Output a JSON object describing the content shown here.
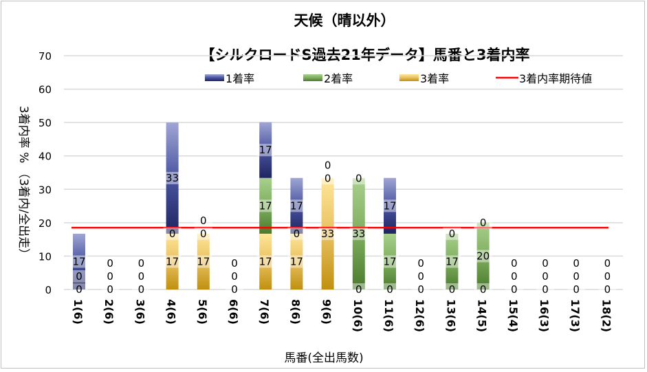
{
  "chart_data": {
    "type": "bar",
    "stacked": true,
    "title": "天候（晴以外）",
    "subtitle": "【シルクロードS過去21年データ】馬番と3着内率",
    "xlabel": "馬番(全出馬数)",
    "ylabel": "3着内率 %  （3着内/全出走）",
    "ylim": [
      0,
      70
    ],
    "yticks": [
      0,
      10,
      20,
      30,
      40,
      50,
      60,
      70
    ],
    "grid": true,
    "legend_position": "top",
    "categories": [
      "1(6)",
      "2(6)",
      "3(6)",
      "4(6)",
      "5(6)",
      "6(6)",
      "7(6)",
      "8(6)",
      "9(6)",
      "10(6)",
      "11(6)",
      "12(6)",
      "13(6)",
      "14(5)",
      "15(4)",
      "16(3)",
      "17(3)",
      "18(2)"
    ],
    "series": [
      {
        "name": "3着率",
        "color": "#c8960f",
        "values": [
          0,
          0,
          0,
          16.7,
          16.7,
          0,
          16.7,
          16.7,
          33.3,
          0,
          0,
          0,
          0,
          0,
          0,
          0,
          0,
          0
        ],
        "labels": [
          "0",
          "0",
          "0",
          "17",
          "17",
          "0",
          "17",
          "17",
          "33",
          "0",
          "0",
          "0",
          "0",
          "0",
          "0",
          "0",
          "0",
          "0"
        ]
      },
      {
        "name": "2着率",
        "color": "#548235",
        "values": [
          0,
          0,
          0,
          0,
          0,
          0,
          16.7,
          0,
          0,
          33.3,
          16.7,
          0,
          16.7,
          20,
          0,
          0,
          0,
          0
        ],
        "labels": [
          "0",
          "0",
          "0",
          "0",
          "0",
          "0",
          "17",
          "0",
          "0",
          "33",
          "17",
          "0",
          "17",
          "20",
          "0",
          "0",
          "0",
          "0"
        ]
      },
      {
        "name": "1着率",
        "color": "#2e3a87",
        "values": [
          16.7,
          0,
          0,
          33.3,
          0,
          0,
          16.7,
          16.7,
          0,
          0,
          16.7,
          0,
          0,
          0,
          0,
          0,
          0,
          0
        ],
        "labels": [
          "17",
          "0",
          "0",
          "33",
          "0",
          "0",
          "17",
          "17",
          "0",
          "0",
          "17",
          "0",
          "0",
          "0",
          "0",
          "0",
          "0",
          "0"
        ]
      }
    ],
    "reference_line": {
      "name": "3着内率期待値",
      "value": 18.5,
      "color": "#ff0000"
    },
    "legend": [
      "1着率",
      "2着率",
      "3着率",
      "3着内率期待値"
    ]
  }
}
